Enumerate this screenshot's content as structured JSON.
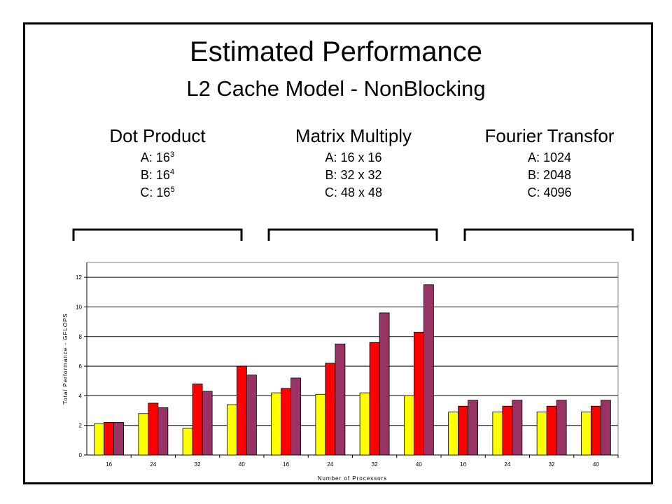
{
  "title": "Estimated Performance",
  "subtitle": "L2 Cache Model - NonBlocking",
  "groups": [
    {
      "name": "Dot Product",
      "configs": [
        {
          "prefix": "A: ",
          "base": "16",
          "sup": "3"
        },
        {
          "prefix": "B: ",
          "base": "16",
          "sup": "4"
        },
        {
          "prefix": "C: ",
          "base": "16",
          "sup": "5"
        }
      ]
    },
    {
      "name": "Matrix Multiply",
      "configs": [
        {
          "prefix": "A: ",
          "base": "16 x 16",
          "sup": ""
        },
        {
          "prefix": "B: ",
          "base": "32 x 32",
          "sup": ""
        },
        {
          "prefix": "C: ",
          "base": "48 x 48",
          "sup": ""
        }
      ]
    },
    {
      "name": "Fourier Transfor",
      "configs": [
        {
          "prefix": "A: ",
          "base": "1024",
          "sup": ""
        },
        {
          "prefix": "B: ",
          "base": "2048",
          "sup": ""
        },
        {
          "prefix": "C: ",
          "base": "4096",
          "sup": ""
        }
      ]
    }
  ],
  "colors": {
    "A": "#ffff00",
    "B": "#ff0000",
    "C": "#993366",
    "frame": "#000000",
    "grid": "#000000"
  },
  "chart_data": {
    "type": "bar",
    "categories": [
      "16",
      "24",
      "32",
      "40",
      "16",
      "24",
      "32",
      "40",
      "16",
      "24",
      "32",
      "40"
    ],
    "series": [
      {
        "values": [
          2.1,
          2.8,
          1.8,
          3.4,
          4.2,
          4.1,
          4.2,
          4.0,
          2.9,
          2.9,
          2.9,
          2.9
        ]
      },
      {
        "values": [
          2.2,
          3.5,
          4.8,
          6.0,
          4.5,
          6.2,
          7.6,
          8.3,
          3.3,
          3.3,
          3.3,
          3.3
        ]
      },
      {
        "values": [
          2.2,
          3.2,
          4.3,
          5.4,
          5.2,
          7.5,
          9.6,
          11.5,
          3.7,
          3.7,
          3.7,
          3.7
        ]
      }
    ],
    "title": "",
    "xlabel": "Number of Processors",
    "ylabel": "Total Performance - GFLOPS",
    "ylim": [
      0,
      13
    ],
    "yticks": [
      0,
      2,
      4,
      6,
      8,
      10,
      12
    ],
    "grid": true,
    "legend": "none"
  }
}
